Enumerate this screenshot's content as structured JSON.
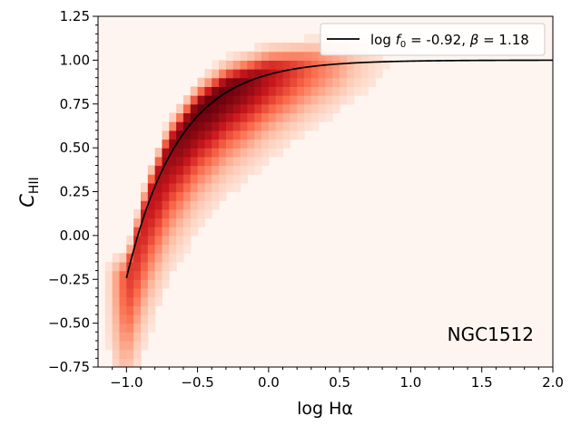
{
  "chart_data": {
    "type": "heatmap",
    "xlabel": "log Hα",
    "ylabel_main": "C",
    "ylabel_sub": "HII",
    "xlim": [
      -1.2,
      2.0
    ],
    "ylim": [
      -0.75,
      1.25
    ],
    "xticks": [
      -1.0,
      -0.5,
      0.0,
      0.5,
      1.0,
      1.5,
      2.0
    ],
    "xtick_labels": [
      "−1.0",
      "−0.5",
      "0.0",
      "0.5",
      "1.0",
      "1.5",
      "2.0"
    ],
    "yticks": [
      -0.75,
      -0.5,
      -0.25,
      0.0,
      0.25,
      0.5,
      0.75,
      1.0,
      1.25
    ],
    "ytick_labels": [
      "−0.75",
      "−0.50",
      "−0.25",
      "0.00",
      "0.25",
      "0.50",
      "0.75",
      "1.00",
      "1.25"
    ],
    "annotation": "NGC1512",
    "legend_location": "upper right",
    "fit_line": {
      "name_prefix": "log ",
      "name_f": "f",
      "name_sub": "0",
      "name_suffix": " = -0.92, ",
      "name_beta": "β",
      "name_beta_value": " = 1.18",
      "log_f0": -0.92,
      "beta": 1.18,
      "x_start": -1.0,
      "x_end": 2.0,
      "color": "#000000"
    },
    "colormap": [
      "#fff5f0",
      "#fcbba1",
      "#fb6a4a",
      "#cb181d",
      "#67000d"
    ],
    "background_color": "#fff5f0",
    "density_ridge": [
      [
        -1.0,
        -0.24
      ],
      [
        -0.85,
        0.2
      ],
      [
        -0.7,
        0.5
      ],
      [
        -0.5,
        0.72
      ],
      [
        -0.3,
        0.84
      ],
      [
        0.0,
        0.93
      ],
      [
        0.3,
        0.97
      ],
      [
        0.6,
        0.99
      ],
      [
        1.0,
        1.0
      ],
      [
        1.5,
        1.0
      ]
    ]
  }
}
